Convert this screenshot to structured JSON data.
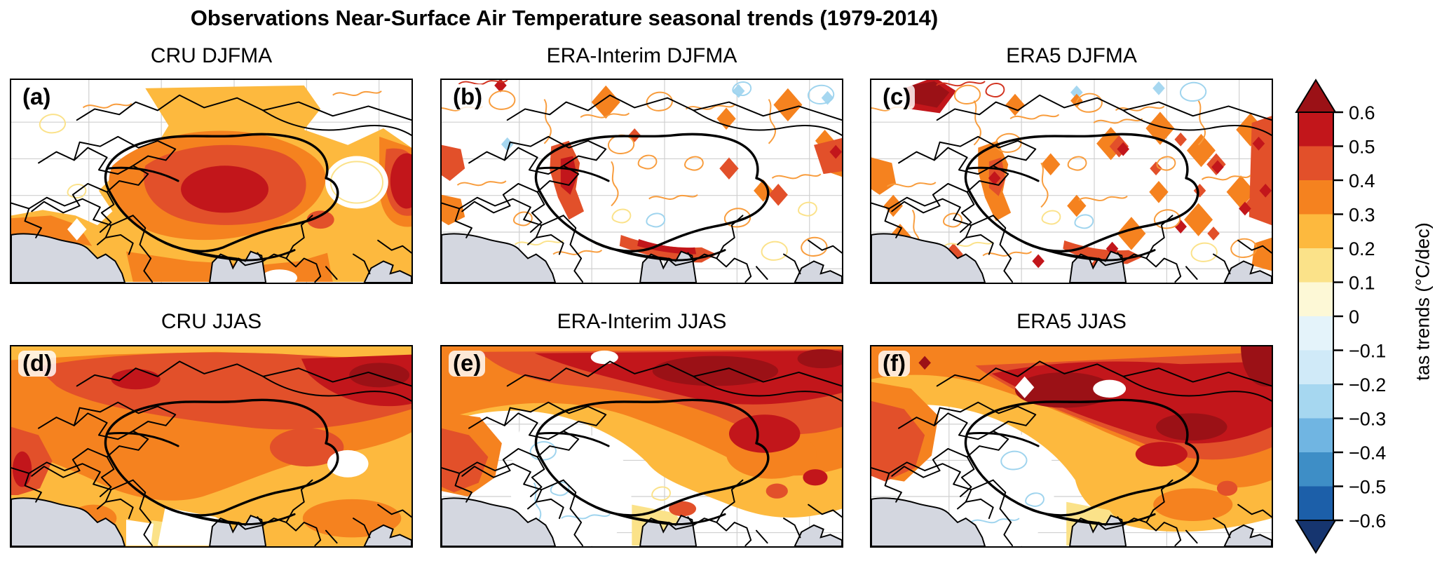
{
  "figure": {
    "title": "Observations Near-Surface Air Temperature seasonal trends (1979-2014)"
  },
  "panels": [
    {
      "label": "(a)",
      "title": "CRU DJFMA"
    },
    {
      "label": "(b)",
      "title": "ERA-Interim DJFMA"
    },
    {
      "label": "(c)",
      "title": "ERA5 DJFMA"
    },
    {
      "label": "(d)",
      "title": "CRU JJAS"
    },
    {
      "label": "(e)",
      "title": "ERA-Interim JJAS"
    },
    {
      "label": "(f)",
      "title": "ERA5 JJAS"
    }
  ],
  "colorbar": {
    "label": "tas trends (°C/dec)",
    "tick_labels": [
      "0.6",
      "0.5",
      "0.4",
      "0.3",
      "0.2",
      "0.1",
      "0",
      "−0.1",
      "−0.2",
      "−0.3",
      "−0.4",
      "−0.5",
      "−0.6"
    ]
  },
  "palette": {
    "pos": [
      "#fdf8d6",
      "#fbe289",
      "#fdb93e",
      "#f5821f",
      "#e2502a",
      "#c2161b",
      "#9b1116"
    ],
    "neg": [
      "#e4f3fa",
      "#d0eaf8",
      "#a6d7f0",
      "#70b5e2",
      "#3e8ec6",
      "#1c5fa9",
      "#16356f"
    ],
    "white": "#ffffff",
    "ocean": "#d4d7e0",
    "grid": "#cfcfcf",
    "border": "#000000",
    "contour": {
      "orange": "#f89c3c",
      "yellow": "#fbe28a",
      "blue": "#9fd4ee",
      "red": "#d2321f"
    }
  },
  "chart_data": {
    "type": "heatmap",
    "title": "Observations Near-Surface Air Temperature seasonal trends (1979-2014)",
    "variable": "tas trends",
    "units": "°C/dec",
    "period": "1979-2014",
    "datasets": [
      "CRU",
      "ERA-Interim",
      "ERA5"
    ],
    "seasons": [
      "DJFMA",
      "JJAS"
    ],
    "layout": "2 rows x 3 columns of maps with black country borders, thick plateau outline, gray ocean mask, light gridlines; shared discrete colorbar on right with arrow extensions",
    "colorbar_levels": [
      -0.6,
      -0.5,
      -0.4,
      -0.3,
      -0.2,
      -0.1,
      0,
      0.1,
      0.2,
      0.3,
      0.4,
      0.5,
      0.6
    ],
    "colorbar_extend": "both",
    "legend_position": "right",
    "panels": [
      {
        "label": "(a)",
        "dataset": "CRU",
        "season": "DJFMA",
        "pattern": "widespread warming ~0.2-0.5 °C/dec; strongest core >0.5 over central plateau and in northeast corner; near-zero white patches northwest and east"
      },
      {
        "label": "(b)",
        "dataset": "ERA-Interim",
        "season": "DJFMA",
        "pattern": "mostly weak/near-zero field with dense thin orange contours; scattered strong warming cells 0.4->0.6 along western and southern plateau rim and northeast; a few slight cooling cells"
      },
      {
        "label": "(c)",
        "dataset": "ERA5",
        "season": "DJFMA",
        "pattern": "speckled strong warming cells 0.3->0.6 over eastern half and west; dark red blob top-left; weak/near-zero over central basin; dense orange contours"
      },
      {
        "label": "(d)",
        "dataset": "CRU",
        "season": "JJAS",
        "pattern": "uniform warming 0.2-0.4 everywhere; stronger 0.4-0.6 band along northern edge with >0.6 maximum in northeast; small near-zero patch south-center"
      },
      {
        "label": "(e)",
        "dataset": "ERA-Interim",
        "season": "JJAS",
        "pattern": "strong warming band 0.5->0.6 across the north; 0.2-0.4 over east and south; near-zero white region over west-central mountains with faint blue contours"
      },
      {
        "label": "(f)",
        "dataset": "ERA5",
        "season": "JJAS",
        "pattern": "broad strong warming 0.5->0.6 over northern and central plateau with dark cores; near-zero center-south and southwest; 0.2-0.3 southeast"
      }
    ]
  }
}
